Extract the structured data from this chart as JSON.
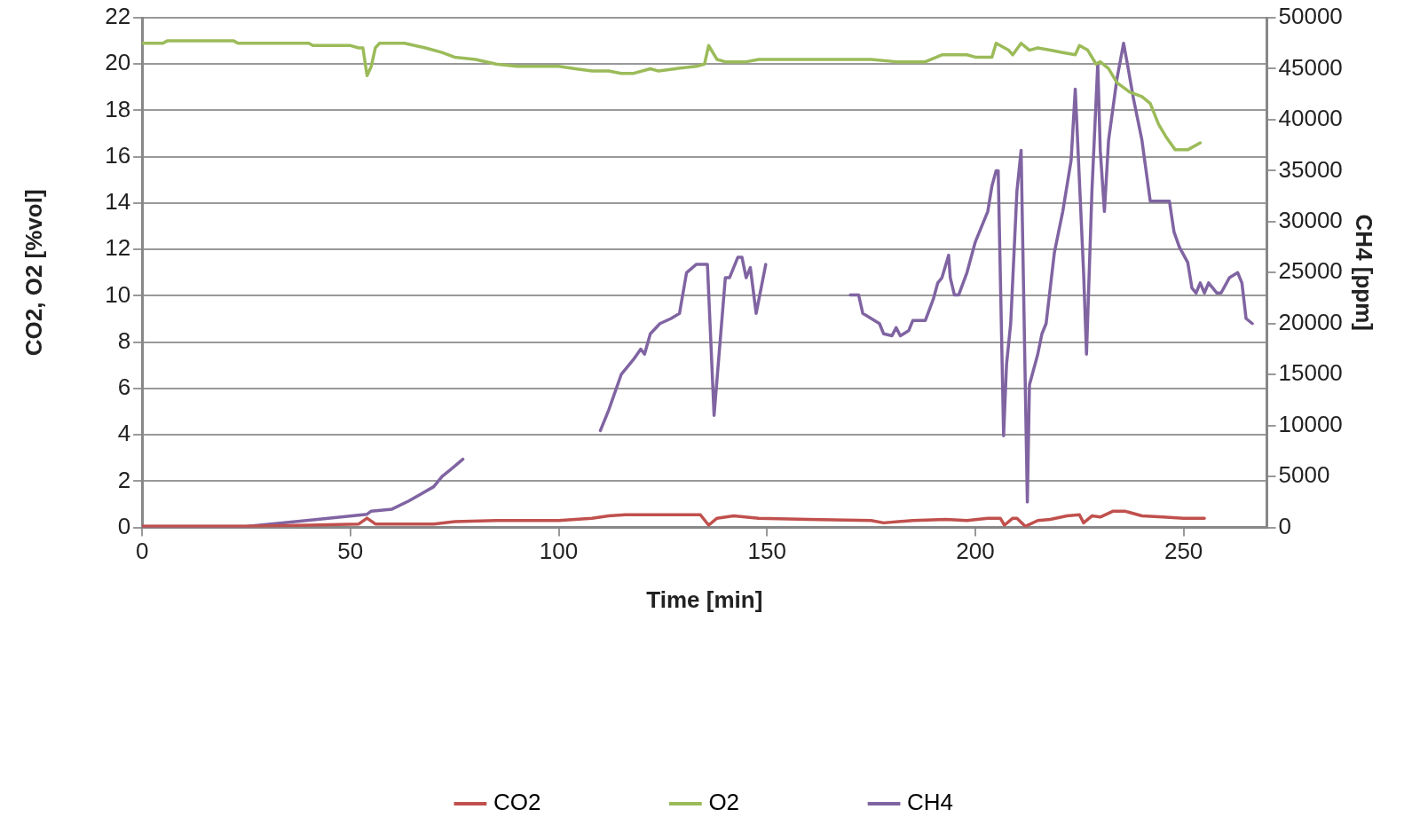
{
  "chart_data": {
    "type": "line",
    "xlabel": "Time [min]",
    "ylabel": "CO2, O2 [%vol]",
    "y2label": "CH4 [ppm]",
    "xlim": [
      0,
      270
    ],
    "xticks": [
      0,
      50,
      100,
      150,
      200,
      250
    ],
    "ylim": [
      0,
      22
    ],
    "yticks": [
      0,
      2,
      4,
      6,
      8,
      10,
      12,
      14,
      16,
      18,
      20,
      22
    ],
    "y2lim": [
      0,
      50000
    ],
    "y2ticks": [
      0,
      5000,
      10000,
      15000,
      20000,
      25000,
      30000,
      35000,
      40000,
      45000,
      50000
    ],
    "grid": "y",
    "legend": "bottom",
    "marker": "none",
    "line_style": "solid",
    "series": [
      {
        "name": "CO2",
        "color": "#c0504d",
        "x": [
          0,
          25,
          40,
          52,
          54,
          56,
          70,
          75,
          85,
          100,
          108,
          112,
          116,
          130,
          134,
          136,
          138,
          142,
          148,
          160,
          175,
          178,
          185,
          193,
          198,
          203,
          206,
          207,
          209,
          210,
          212,
          215,
          218,
          222,
          225,
          226,
          228,
          230,
          233,
          236,
          240,
          245,
          250,
          255
        ],
        "values": [
          0.05,
          0.05,
          0.1,
          0.15,
          0.4,
          0.15,
          0.15,
          0.25,
          0.3,
          0.3,
          0.4,
          0.5,
          0.55,
          0.55,
          0.55,
          0.1,
          0.4,
          0.5,
          0.4,
          0.35,
          0.3,
          0.2,
          0.3,
          0.35,
          0.3,
          0.4,
          0.4,
          0.1,
          0.4,
          0.4,
          0.05,
          0.3,
          0.35,
          0.5,
          0.55,
          0.2,
          0.5,
          0.45,
          0.7,
          0.7,
          0.5,
          0.45,
          0.4,
          0.4
        ]
      },
      {
        "name": "O2",
        "color": "#9bbb59",
        "x": [
          0,
          5,
          6,
          22,
          23,
          40,
          41,
          50,
          52,
          53,
          54,
          55,
          56,
          57,
          63,
          68,
          72,
          75,
          80,
          85,
          90,
          100,
          104,
          108,
          112,
          115,
          118,
          122,
          124,
          128,
          133,
          135,
          136,
          138,
          140,
          145,
          148,
          153,
          175,
          181,
          188,
          192,
          198,
          200,
          204,
          205,
          208,
          209,
          211,
          213,
          215,
          218,
          221,
          224,
          225,
          227,
          229,
          230,
          232,
          234,
          237,
          240,
          242,
          244,
          246,
          248,
          251,
          254
        ],
        "values": [
          20.9,
          20.9,
          21.0,
          21.0,
          20.9,
          20.9,
          20.8,
          20.8,
          20.7,
          20.7,
          19.5,
          19.9,
          20.7,
          20.9,
          20.9,
          20.7,
          20.5,
          20.3,
          20.2,
          20.0,
          19.9,
          19.9,
          19.8,
          19.7,
          19.7,
          19.6,
          19.6,
          19.8,
          19.7,
          19.8,
          19.9,
          20.0,
          20.8,
          20.2,
          20.1,
          20.1,
          20.2,
          20.2,
          20.2,
          20.1,
          20.1,
          20.4,
          20.4,
          20.3,
          20.3,
          20.9,
          20.6,
          20.4,
          20.9,
          20.6,
          20.7,
          20.6,
          20.5,
          20.4,
          20.8,
          20.6,
          20.0,
          20.1,
          19.8,
          19.2,
          18.8,
          18.6,
          18.3,
          17.4,
          16.8,
          16.3,
          16.3,
          16.6
        ]
      },
      {
        "name": "CH4",
        "color": "#8064a2",
        "axis": "y2",
        "x": [
          0,
          25,
          40,
          54,
          55,
          60,
          64,
          67,
          70,
          72,
          75,
          77,
          90,
          110,
          112,
          115,
          118,
          119.7,
          120.6,
          122,
          124.3,
          127,
          129,
          130.7,
          133,
          134.6,
          135.7,
          137.3,
          140,
          141,
          143,
          144,
          145,
          146,
          147.4,
          149.7,
          160,
          170,
          172,
          173,
          175,
          177,
          178,
          180,
          181,
          182,
          184,
          185,
          188,
          190,
          191,
          192,
          193.6,
          194,
          195,
          196,
          198,
          200,
          203,
          204,
          205,
          205.5,
          206.8,
          207.5,
          208.5,
          210,
          211,
          212.5,
          213,
          215,
          216,
          217,
          218,
          219,
          221,
          223,
          224,
          226,
          226.7,
          228,
          229.4,
          230,
          231,
          232,
          234,
          235.6,
          236.5,
          238,
          240,
          242,
          243.6,
          246.6,
          247.7,
          249,
          251,
          252,
          253,
          254,
          255,
          256,
          258,
          259,
          261,
          263,
          264,
          265,
          266.5
        ],
        "values": [
          100,
          100,
          700,
          1300,
          1600,
          1800,
          2600,
          3300,
          4000,
          5000,
          6000,
          6700,
          null,
          9500,
          11500,
          15000,
          16500,
          17500,
          17000,
          19000,
          20000,
          20500,
          21000,
          25000,
          25800,
          25800,
          25800,
          11000,
          24500,
          24500,
          26500,
          26500,
          24500,
          25500,
          21000,
          25800,
          null,
          22800,
          22800,
          21000,
          20500,
          20000,
          19000,
          18800,
          19600,
          18800,
          19300,
          20300,
          20300,
          22500,
          24000,
          24500,
          26700,
          24500,
          22800,
          22800,
          25000,
          28000,
          31000,
          33500,
          35000,
          35000,
          9000,
          16000,
          20000,
          33000,
          37000,
          2500,
          14000,
          17000,
          19000,
          20000,
          23500,
          27000,
          31000,
          36000,
          43000,
          25000,
          17000,
          33000,
          45500,
          37000,
          31000,
          38000,
          44000,
          47500,
          45500,
          42000,
          38000,
          32000,
          32000,
          32000,
          29000,
          27500,
          26000,
          23500,
          23000,
          24000,
          23000,
          24000,
          23000,
          23000,
          24500,
          25000,
          24000,
          20500,
          20000
        ]
      }
    ]
  }
}
